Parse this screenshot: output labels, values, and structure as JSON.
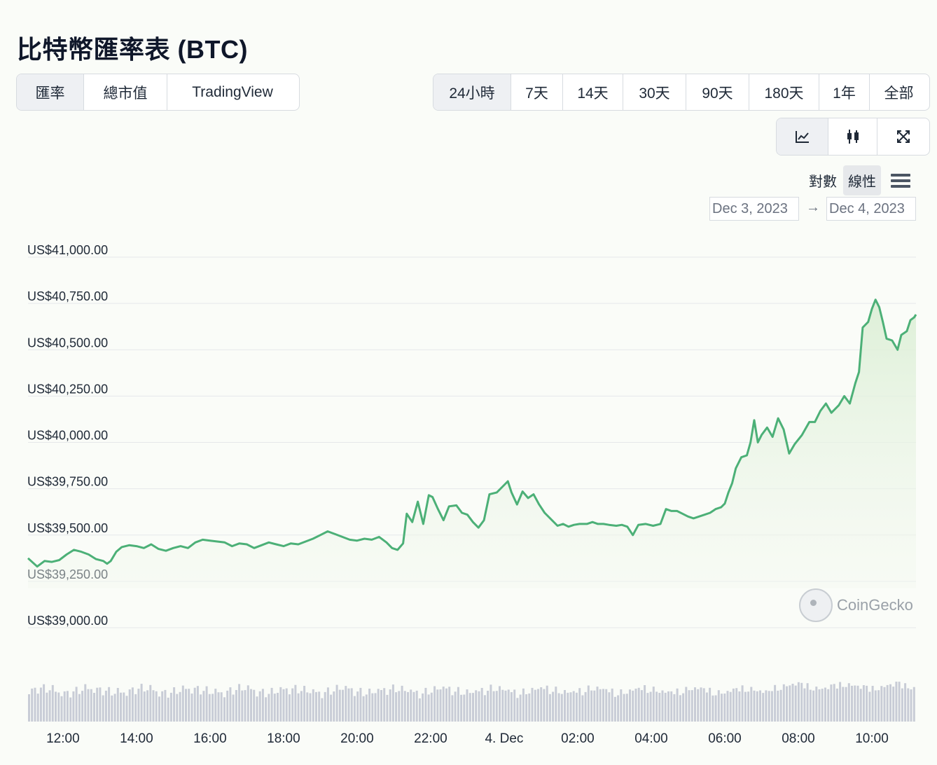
{
  "page": {
    "title": "比特幣匯率表 (BTC)"
  },
  "view_tabs": [
    {
      "label": "匯率",
      "active": true
    },
    {
      "label": "總市值",
      "active": false
    },
    {
      "label": "TradingView",
      "active": false
    }
  ],
  "range_tabs": [
    {
      "label": "24小時",
      "active": true
    },
    {
      "label": "7天",
      "active": false
    },
    {
      "label": "14天",
      "active": false
    },
    {
      "label": "30天",
      "active": false
    },
    {
      "label": "90天",
      "active": false
    },
    {
      "label": "180天",
      "active": false
    },
    {
      "label": "1年",
      "active": false
    },
    {
      "label": "全部",
      "active": false
    }
  ],
  "chart_type_buttons": [
    {
      "icon": "line-chart-icon",
      "active": true
    },
    {
      "icon": "candlestick-icon",
      "active": false
    },
    {
      "icon": "fullscreen-icon",
      "active": false
    }
  ],
  "scale_toggle": {
    "log_label": "對數",
    "linear_label": "線性",
    "active": "線性",
    "menu_icon": "hamburger-menu-icon"
  },
  "date_range": {
    "from": "Dec 3, 2023",
    "arrow": "→",
    "to": "Dec 4, 2023"
  },
  "watermark": {
    "text": "CoinGecko",
    "icon": "coingecko-logo"
  },
  "colors": {
    "line": "#4cb077",
    "area_top": "#dcefd6",
    "volume": "#c8ccd6",
    "grid": "#e5e8ea"
  },
  "chart_data": {
    "type": "area",
    "ylim": [
      39000,
      41000
    ],
    "y_ticks": [
      {
        "value": 41000,
        "label": "US$41,000.00"
      },
      {
        "value": 40750,
        "label": "US$40,750.00"
      },
      {
        "value": 40500,
        "label": "US$40,500.00"
      },
      {
        "value": 40250,
        "label": "US$40,250.00"
      },
      {
        "value": 40000,
        "label": "US$40,000.00"
      },
      {
        "value": 39750,
        "label": "US$39,750.00"
      },
      {
        "value": 39500,
        "label": "US$39,500.00"
      },
      {
        "value": 39250,
        "label": "US$39,250.00"
      },
      {
        "value": 39000,
        "label": "US$39,000.00"
      }
    ],
    "x_ticks": [
      {
        "t": 12.0,
        "label": "12:00"
      },
      {
        "t": 14.0,
        "label": "14:00"
      },
      {
        "t": 16.0,
        "label": "16:00"
      },
      {
        "t": 18.0,
        "label": "18:00"
      },
      {
        "t": 20.0,
        "label": "20:00"
      },
      {
        "t": 22.0,
        "label": "22:00"
      },
      {
        "t": 24.0,
        "label": "4. Dec"
      },
      {
        "t": 26.0,
        "label": "02:00"
      },
      {
        "t": 28.0,
        "label": "04:00"
      },
      {
        "t": 30.0,
        "label": "06:00"
      },
      {
        "t": 32.0,
        "label": "08:00"
      },
      {
        "t": 34.0,
        "label": "10:00"
      }
    ],
    "xlim": [
      11.05,
      35.2
    ],
    "series": [
      {
        "points": [
          [
            11.05,
            39375
          ],
          [
            11.3,
            39330
          ],
          [
            11.5,
            39360
          ],
          [
            11.7,
            39355
          ],
          [
            11.9,
            39365
          ],
          [
            12.1,
            39395
          ],
          [
            12.3,
            39420
          ],
          [
            12.5,
            39410
          ],
          [
            12.7,
            39395
          ],
          [
            12.9,
            39370
          ],
          [
            13.1,
            39360
          ],
          [
            13.2,
            39345
          ],
          [
            13.3,
            39360
          ],
          [
            13.45,
            39410
          ],
          [
            13.6,
            39435
          ],
          [
            13.8,
            39445
          ],
          [
            14.0,
            39440
          ],
          [
            14.2,
            39430
          ],
          [
            14.4,
            39450
          ],
          [
            14.6,
            39425
          ],
          [
            14.8,
            39415
          ],
          [
            15.0,
            39430
          ],
          [
            15.2,
            39440
          ],
          [
            15.4,
            39430
          ],
          [
            15.6,
            39460
          ],
          [
            15.8,
            39475
          ],
          [
            16.0,
            39470
          ],
          [
            16.2,
            39465
          ],
          [
            16.4,
            39460
          ],
          [
            16.6,
            39440
          ],
          [
            16.8,
            39455
          ],
          [
            17.0,
            39450
          ],
          [
            17.2,
            39430
          ],
          [
            17.4,
            39445
          ],
          [
            17.6,
            39460
          ],
          [
            17.8,
            39450
          ],
          [
            18.0,
            39440
          ],
          [
            18.2,
            39455
          ],
          [
            18.4,
            39450
          ],
          [
            18.6,
            39465
          ],
          [
            18.8,
            39480
          ],
          [
            19.0,
            39500
          ],
          [
            19.2,
            39520
          ],
          [
            19.4,
            39505
          ],
          [
            19.6,
            39490
          ],
          [
            19.8,
            39475
          ],
          [
            20.0,
            39470
          ],
          [
            20.2,
            39480
          ],
          [
            20.4,
            39475
          ],
          [
            20.6,
            39490
          ],
          [
            20.8,
            39460
          ],
          [
            20.95,
            39430
          ],
          [
            21.1,
            39420
          ],
          [
            21.25,
            39455
          ],
          [
            21.35,
            39615
          ],
          [
            21.5,
            39570
          ],
          [
            21.65,
            39680
          ],
          [
            21.8,
            39560
          ],
          [
            21.95,
            39715
          ],
          [
            22.05,
            39705
          ],
          [
            22.2,
            39640
          ],
          [
            22.35,
            39580
          ],
          [
            22.5,
            39655
          ],
          [
            22.7,
            39660
          ],
          [
            22.85,
            39620
          ],
          [
            23.0,
            39610
          ],
          [
            23.15,
            39570
          ],
          [
            23.3,
            39540
          ],
          [
            23.45,
            39580
          ],
          [
            23.6,
            39720
          ],
          [
            23.8,
            39730
          ],
          [
            23.95,
            39760
          ],
          [
            24.1,
            39790
          ],
          [
            24.2,
            39730
          ],
          [
            24.35,
            39665
          ],
          [
            24.5,
            39735
          ],
          [
            24.65,
            39700
          ],
          [
            24.8,
            39720
          ],
          [
            24.95,
            39665
          ],
          [
            25.1,
            39620
          ],
          [
            25.3,
            39580
          ],
          [
            25.45,
            39550
          ],
          [
            25.6,
            39560
          ],
          [
            25.75,
            39545
          ],
          [
            25.9,
            39555
          ],
          [
            26.05,
            39560
          ],
          [
            26.25,
            39560
          ],
          [
            26.4,
            39570
          ],
          [
            26.55,
            39560
          ],
          [
            26.7,
            39560
          ],
          [
            26.85,
            39555
          ],
          [
            27.05,
            39550
          ],
          [
            27.2,
            39555
          ],
          [
            27.35,
            39545
          ],
          [
            27.5,
            39500
          ],
          [
            27.65,
            39555
          ],
          [
            27.85,
            39560
          ],
          [
            28.05,
            39550
          ],
          [
            28.25,
            39560
          ],
          [
            28.4,
            39640
          ],
          [
            28.55,
            39630
          ],
          [
            28.7,
            39630
          ],
          [
            28.85,
            39615
          ],
          [
            29.0,
            39600
          ],
          [
            29.15,
            39590
          ],
          [
            29.3,
            39600
          ],
          [
            29.45,
            39610
          ],
          [
            29.6,
            39620
          ],
          [
            29.75,
            39640
          ],
          [
            29.9,
            39650
          ],
          [
            30.0,
            39670
          ],
          [
            30.1,
            39730
          ],
          [
            30.2,
            39780
          ],
          [
            30.3,
            39860
          ],
          [
            30.45,
            39920
          ],
          [
            30.6,
            39930
          ],
          [
            30.7,
            40000
          ],
          [
            30.8,
            40120
          ],
          [
            30.9,
            40000
          ],
          [
            31.0,
            40040
          ],
          [
            31.15,
            40080
          ],
          [
            31.3,
            40030
          ],
          [
            31.45,
            40130
          ],
          [
            31.6,
            40070
          ],
          [
            31.75,
            39940
          ],
          [
            31.9,
            39990
          ],
          [
            32.1,
            40040
          ],
          [
            32.3,
            40110
          ],
          [
            32.45,
            40110
          ],
          [
            32.6,
            40170
          ],
          [
            32.75,
            40210
          ],
          [
            32.9,
            40160
          ],
          [
            33.1,
            40200
          ],
          [
            33.25,
            40250
          ],
          [
            33.4,
            40210
          ],
          [
            33.55,
            40320
          ],
          [
            33.65,
            40380
          ],
          [
            33.75,
            40620
          ],
          [
            33.9,
            40650
          ],
          [
            34.0,
            40720
          ],
          [
            34.1,
            40770
          ],
          [
            34.2,
            40730
          ],
          [
            34.3,
            40650
          ],
          [
            34.4,
            40560
          ],
          [
            34.55,
            40550
          ],
          [
            34.7,
            40500
          ],
          [
            34.8,
            40580
          ],
          [
            34.95,
            40600
          ],
          [
            35.05,
            40660
          ],
          [
            35.15,
            40675
          ],
          [
            35.2,
            40690
          ]
        ]
      }
    ]
  }
}
